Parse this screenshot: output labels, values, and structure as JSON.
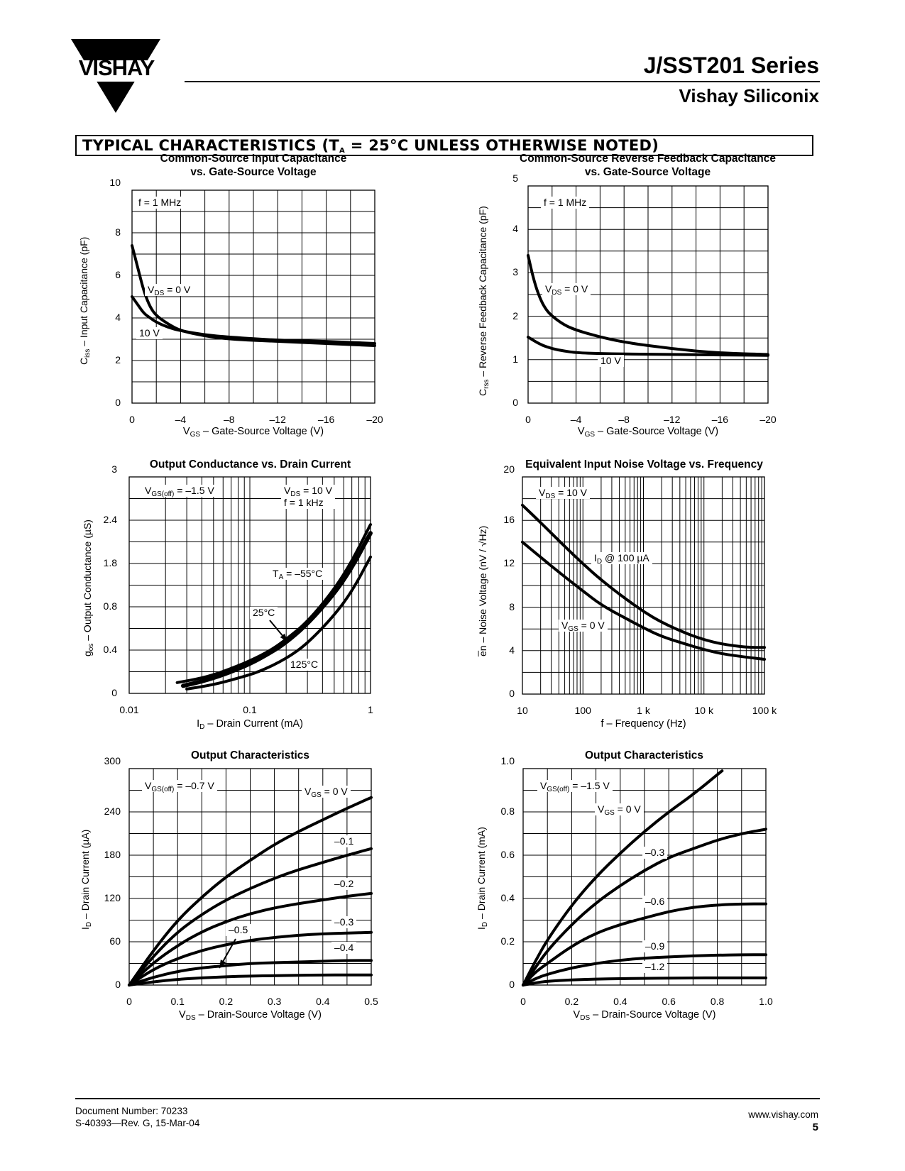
{
  "header": {
    "brand": "VISHAY",
    "series": "J/SST201 Series",
    "company": "Vishay Siliconix"
  },
  "section": {
    "title_prefix": "TYPICAL CHARACTERISTICS (T",
    "title_sub": "A",
    "title_suffix": " = 25°C UNLESS OTHERWISE NOTED)"
  },
  "footer": {
    "doc_number": "Document Number:  70233",
    "revision": "S-40393—Rev. G, 15-Mar-04",
    "website": "www.vishay.com",
    "page": "5"
  },
  "chart_data": [
    {
      "id": "ciss",
      "type": "line",
      "title": [
        "Common-Source Input Capacitance",
        "vs. Gate-Source Voltage"
      ],
      "ylabel": "Ciss – Input Capacitance (pF)",
      "ylabel_main": "C",
      "ylabel_sub": "iss",
      "ylabel_rest": " – Input Capacitance (pF)",
      "xlabel_main": "V",
      "xlabel_sub": "GS",
      "xlabel_rest": " – Gate-Source Voltage (V)",
      "x_ticks": [
        "0",
        "–4",
        "–8",
        "–12",
        "–16",
        "–20"
      ],
      "y_ticks": [
        "0",
        "2",
        "4",
        "6",
        "8",
        "10"
      ],
      "xlim": [
        0,
        -20
      ],
      "ylim": [
        0,
        10
      ],
      "annotations": [
        "f = 1 MHz",
        "V<sub>DS</sub> = 0 V",
        "10 V"
      ],
      "series": [
        {
          "name": "VDS = 0 V",
          "x": [
            0,
            -0.5,
            -1,
            -1.5,
            -2,
            -3,
            -4,
            -6,
            -8,
            -12,
            -16,
            -20
          ],
          "y": [
            7.4,
            6.3,
            5.2,
            4.5,
            4.1,
            3.7,
            3.4,
            3.15,
            3.0,
            2.9,
            2.8,
            2.7
          ]
        },
        {
          "name": "VDS = 10 V",
          "x": [
            0,
            -0.5,
            -1,
            -1.5,
            -2,
            -3,
            -4,
            -6,
            -8,
            -12,
            -16,
            -20
          ],
          "y": [
            5.0,
            4.6,
            4.2,
            4.0,
            3.8,
            3.55,
            3.4,
            3.2,
            3.1,
            2.95,
            2.9,
            2.8
          ]
        }
      ]
    },
    {
      "id": "crss",
      "type": "line",
      "title": [
        "Common-Source Reverse Feedback Capacitance",
        "vs. Gate-Source Voltage"
      ],
      "ylabel_main": "C",
      "ylabel_sub": "rss",
      "ylabel_rest": " – Reverse Feedback Capacitance (pF)",
      "xlabel_main": "V",
      "xlabel_sub": "GS",
      "xlabel_rest": " – Gate-Source Voltage (V)",
      "x_ticks": [
        "0",
        "–4",
        "–8",
        "–12",
        "–16",
        "–20"
      ],
      "y_ticks": [
        "0",
        "1",
        "2",
        "3",
        "4",
        "5"
      ],
      "xlim": [
        0,
        -20
      ],
      "ylim": [
        0,
        5
      ],
      "annotations": [
        "f = 1 MHz",
        "V<sub>DS</sub> = 0 V",
        "10 V"
      ],
      "series": [
        {
          "name": "VDS = 0 V",
          "x": [
            0,
            -0.5,
            -1,
            -1.5,
            -2,
            -3,
            -4,
            -6,
            -8,
            -12,
            -16,
            -20
          ],
          "y": [
            3.4,
            2.8,
            2.4,
            2.15,
            2.0,
            1.8,
            1.68,
            1.52,
            1.4,
            1.25,
            1.15,
            1.12
          ]
        },
        {
          "name": "VDS = 10 V",
          "x": [
            0,
            -1,
            -2,
            -3,
            -4,
            -6,
            -8,
            -12,
            -16,
            -20
          ],
          "y": [
            1.52,
            1.35,
            1.25,
            1.2,
            1.16,
            1.14,
            1.13,
            1.12,
            1.11,
            1.1
          ]
        }
      ]
    },
    {
      "id": "gos",
      "type": "line",
      "title": [
        "Output Conductance vs. Drain Current"
      ],
      "ylabel_main": "g",
      "ylabel_sub": "os",
      "ylabel_rest": " – Output Conductance (µS)",
      "xlabel_main": "I",
      "xlabel_sub": "D",
      "xlabel_rest": " – Drain Current (mA)",
      "x_ticks": [
        "0.01",
        "0.1",
        "1"
      ],
      "y_ticks": [
        "0",
        "0.4",
        "0.8",
        "1.8",
        "2.4",
        "3"
      ],
      "xscale": "log",
      "annotations": [
        "V<sub>GS(off)</sub> = –1.5 V",
        "V<sub>DS</sub> = 10 V<br>f = 1 kHz",
        "T<sub>A</sub> = –55°C",
        "25°C",
        "125°C"
      ],
      "series": [
        {
          "name": "TA = –55°C",
          "x": [
            0.025,
            0.04,
            0.06,
            0.1,
            0.15,
            0.2,
            0.3,
            0.5,
            0.7,
            1.0
          ],
          "y_frac": [
            0.05,
            0.07,
            0.1,
            0.15,
            0.2,
            0.25,
            0.33,
            0.48,
            0.61,
            0.78
          ]
        },
        {
          "name": "25°C",
          "x": [
            0.028,
            0.04,
            0.06,
            0.1,
            0.15,
            0.2,
            0.3,
            0.5,
            0.7,
            1.0
          ],
          "y_frac": [
            0.035,
            0.055,
            0.085,
            0.135,
            0.19,
            0.235,
            0.32,
            0.46,
            0.58,
            0.74
          ]
        },
        {
          "name": "125°C",
          "x": [
            0.03,
            0.05,
            0.08,
            0.12,
            0.2,
            0.3,
            0.5,
            0.7,
            1.0
          ],
          "y_frac": [
            0.02,
            0.04,
            0.07,
            0.1,
            0.16,
            0.23,
            0.36,
            0.47,
            0.63
          ]
        }
      ]
    },
    {
      "id": "noise",
      "type": "line",
      "title": [
        "Equivalent Input Noise Voltage vs. Frequency"
      ],
      "ylabel_main": "e̅n",
      "ylabel_sub": "",
      "ylabel_rest": " – Noise Voltage (nV / √Hz)",
      "xlabel_main": "f – Frequency (Hz)",
      "xlabel_sub": "",
      "xlabel_rest": "",
      "x_ticks": [
        "10",
        "100",
        "1 k",
        "10 k",
        "100 k"
      ],
      "y_ticks": [
        "0",
        "4",
        "8",
        "12",
        "16",
        "20"
      ],
      "xscale": "log",
      "xlim": [
        10,
        100000
      ],
      "ylim": [
        0,
        20
      ],
      "annotations": [
        "V<sub>DS</sub> = 10 V",
        "I<sub>D</sub> @ 100 µA",
        "V<sub>GS</sub> = 0 V"
      ],
      "series": [
        {
          "name": "ID @ 100 µA",
          "x": [
            10,
            20,
            50,
            100,
            200,
            500,
            1000,
            2000,
            5000,
            10000,
            20000,
            50000,
            100000
          ],
          "y": [
            17.4,
            15.8,
            13.6,
            12.0,
            10.5,
            8.8,
            7.6,
            6.6,
            5.6,
            5.0,
            4.6,
            4.3,
            4.3
          ]
        },
        {
          "name": "VGS = 0 V",
          "x": [
            10,
            20,
            50,
            100,
            200,
            500,
            1000,
            2000,
            5000,
            10000,
            20000,
            50000,
            100000
          ],
          "y": [
            14.0,
            12.6,
            10.8,
            9.5,
            8.2,
            7.0,
            6.1,
            5.3,
            4.6,
            4.1,
            3.7,
            3.4,
            3.2
          ]
        }
      ]
    },
    {
      "id": "out1",
      "type": "line",
      "title": [
        "Output Characteristics"
      ],
      "ylabel_main": "I",
      "ylabel_sub": "D",
      "ylabel_rest": " – Drain Current (µA)",
      "xlabel_main": "V",
      "xlabel_sub": "DS",
      "xlabel_rest": " – Drain-Source Voltage (V)",
      "x_ticks": [
        "0",
        "0.1",
        "0.2",
        "0.3",
        "0.4",
        "0.5"
      ],
      "y_ticks": [
        "0",
        "60",
        "120",
        "180",
        "240",
        "300"
      ],
      "xlim": [
        0,
        0.5
      ],
      "ylim": [
        0,
        300
      ],
      "annotations": [
        "V<sub>GS(off)</sub> = –0.7 V",
        "V<sub>GS</sub> = 0 V",
        "–0.1",
        "–0.2",
        "–0.3",
        "–0.4",
        "–0.5"
      ],
      "series": [
        {
          "name": "VGS = 0 V",
          "x": [
            0,
            0.05,
            0.1,
            0.15,
            0.2,
            0.25,
            0.3,
            0.35,
            0.4,
            0.45,
            0.5
          ],
          "y": [
            0,
            48,
            90,
            122,
            150,
            173,
            195,
            213,
            229,
            245,
            260
          ]
        },
        {
          "name": "–0.1",
          "x": [
            0,
            0.05,
            0.1,
            0.15,
            0.2,
            0.25,
            0.3,
            0.35,
            0.4,
            0.45,
            0.5
          ],
          "y": [
            0,
            40,
            74,
            98,
            118,
            134,
            148,
            160,
            170,
            180,
            189
          ]
        },
        {
          "name": "–0.2",
          "x": [
            0,
            0.05,
            0.1,
            0.15,
            0.2,
            0.25,
            0.3,
            0.35,
            0.4,
            0.45,
            0.5
          ],
          "y": [
            0,
            31,
            55,
            74,
            88,
            99,
            107,
            113,
            118,
            123,
            127
          ]
        },
        {
          "name": "–0.3",
          "x": [
            0,
            0.05,
            0.1,
            0.15,
            0.2,
            0.25,
            0.3,
            0.35,
            0.4,
            0.45,
            0.5
          ],
          "y": [
            0,
            22,
            37,
            48,
            56,
            62,
            66,
            69,
            71,
            72,
            73
          ]
        },
        {
          "name": "–0.4",
          "x": [
            0,
            0.05,
            0.1,
            0.15,
            0.2,
            0.25,
            0.3,
            0.35,
            0.4,
            0.45,
            0.5
          ],
          "y": [
            0,
            11,
            19,
            24,
            27,
            30,
            31,
            32,
            33,
            34,
            34
          ]
        },
        {
          "name": "–0.5",
          "x": [
            0,
            0.05,
            0.1,
            0.15,
            0.2,
            0.25,
            0.3,
            0.35,
            0.4,
            0.45,
            0.5
          ],
          "y": [
            0,
            4.5,
            8,
            10,
            11.5,
            12.5,
            13,
            13.5,
            14,
            14,
            14
          ]
        }
      ]
    },
    {
      "id": "out2",
      "type": "line",
      "title": [
        "Output Characteristics"
      ],
      "ylabel_main": "I",
      "ylabel_sub": "D",
      "ylabel_rest": " – Drain Current (mA)",
      "xlabel_main": "V",
      "xlabel_sub": "DS",
      "xlabel_rest": " – Drain-Source Voltage (V)",
      "x_ticks": [
        "0",
        "0.2",
        "0.4",
        "0.6",
        "0.8",
        "1.0"
      ],
      "y_ticks": [
        "0",
        "0.2",
        "0.4",
        "0.6",
        "0.8",
        "1.0"
      ],
      "xlim": [
        0,
        1.0
      ],
      "ylim": [
        0,
        1.0
      ],
      "annotations": [
        "V<sub>GS(off)</sub> = –1.5 V",
        "V<sub>GS</sub> = 0 V",
        "–0.3",
        "–0.6",
        "–0.9",
        "–1.2"
      ],
      "series": [
        {
          "name": "VGS = 0 V",
          "x": [
            0,
            0.05,
            0.1,
            0.2,
            0.3,
            0.4,
            0.5,
            0.6,
            0.7,
            0.82
          ],
          "y": [
            0,
            0.11,
            0.21,
            0.37,
            0.5,
            0.61,
            0.71,
            0.8,
            0.88,
            0.99
          ]
        },
        {
          "name": "–0.3",
          "x": [
            0,
            0.05,
            0.1,
            0.2,
            0.3,
            0.4,
            0.5,
            0.6,
            0.7,
            0.8,
            0.9,
            1.0
          ],
          "y": [
            0,
            0.08,
            0.16,
            0.28,
            0.38,
            0.46,
            0.53,
            0.59,
            0.63,
            0.67,
            0.7,
            0.72
          ]
        },
        {
          "name": "–0.6",
          "x": [
            0,
            0.05,
            0.1,
            0.2,
            0.3,
            0.4,
            0.5,
            0.6,
            0.7,
            0.8,
            0.9,
            1.0
          ],
          "y": [
            0,
            0.06,
            0.1,
            0.18,
            0.24,
            0.28,
            0.31,
            0.34,
            0.36,
            0.37,
            0.375,
            0.375
          ]
        },
        {
          "name": "–0.9",
          "x": [
            0,
            0.05,
            0.1,
            0.2,
            0.3,
            0.4,
            0.5,
            0.6,
            0.7,
            0.8,
            0.9,
            1.0
          ],
          "y": [
            0,
            0.03,
            0.05,
            0.08,
            0.1,
            0.115,
            0.125,
            0.13,
            0.135,
            0.138,
            0.14,
            0.14
          ]
        },
        {
          "name": "–1.2",
          "x": [
            0,
            0.05,
            0.1,
            0.2,
            0.3,
            0.4,
            0.5,
            0.6,
            0.7,
            0.8,
            0.9,
            1.0
          ],
          "y": [
            0,
            0.01,
            0.018,
            0.024,
            0.028,
            0.03,
            0.031,
            0.032,
            0.033,
            0.033,
            0.033,
            0.033
          ]
        }
      ]
    }
  ]
}
